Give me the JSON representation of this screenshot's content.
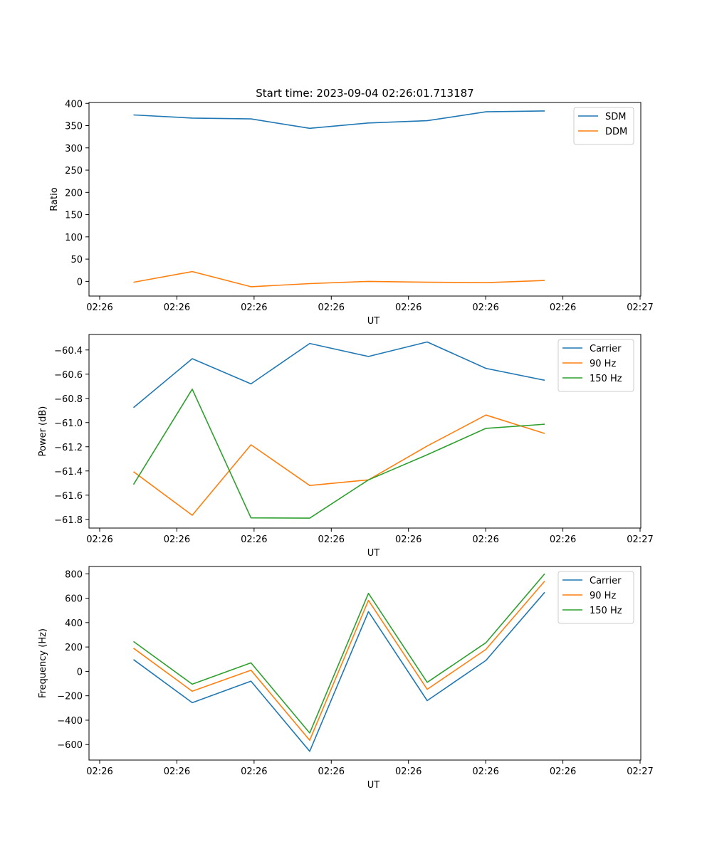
{
  "chart_data": [
    {
      "type": "line",
      "title": "Start time: 2023-09-04 02:26:01.713187",
      "xlabel": "UT",
      "ylabel": "Ratio",
      "xticks": [
        "02:26",
        "02:26",
        "02:26",
        "02:26",
        "02:26",
        "02:26",
        "02:26",
        "02:27"
      ],
      "xlim": [
        0,
        6.2
      ],
      "x": [
        0.5,
        1.16,
        1.82,
        2.48,
        3.14,
        3.8,
        4.46,
        5.12
      ],
      "ylim": [
        -33,
        402
      ],
      "yticks": [
        0,
        50,
        100,
        150,
        200,
        250,
        300,
        350,
        400
      ],
      "legend": "top-right",
      "series": [
        {
          "name": "SDM",
          "color": "#1f77b4",
          "values": [
            374,
            367,
            365,
            344,
            356,
            361,
            381,
            383
          ]
        },
        {
          "name": "DDM",
          "color": "#ff7f0e",
          "values": [
            -2,
            22,
            -12,
            -5,
            0,
            -2,
            -3,
            2
          ]
        }
      ]
    },
    {
      "type": "line",
      "title": "",
      "xlabel": "UT",
      "ylabel": "Power (dB)",
      "xticks": [
        "02:26",
        "02:26",
        "02:26",
        "02:26",
        "02:26",
        "02:26",
        "02:26",
        "02:27"
      ],
      "xlim": [
        0,
        6.2
      ],
      "x": [
        0.5,
        1.16,
        1.82,
        2.48,
        3.14,
        3.8,
        4.46,
        5.12
      ],
      "ylim": [
        -61.872,
        -60.272
      ],
      "yticks": [
        -61.8,
        -61.6,
        -61.4,
        -61.2,
        -61.0,
        -60.8,
        -60.6,
        -60.4
      ],
      "ytick_labels": [
        "−61.8",
        "−61.6",
        "−61.4",
        "−61.2",
        "−61.0",
        "−60.8",
        "−60.6",
        "−60.4"
      ],
      "legend": "top-right",
      "series": [
        {
          "name": "Carrier",
          "color": "#1f77b4",
          "values": [
            -60.876,
            -60.472,
            -60.68,
            -60.346,
            -60.454,
            -60.334,
            -60.552,
            -60.65
          ]
        },
        {
          "name": "90 Hz",
          "color": "#ff7f0e",
          "values": [
            -61.406,
            -61.766,
            -61.184,
            -61.52,
            -61.474,
            -61.194,
            -60.938,
            -61.09
          ]
        },
        {
          "name": "150 Hz",
          "color": "#2ca02c",
          "values": [
            -61.512,
            -60.724,
            -61.788,
            -61.79,
            -61.474,
            -61.266,
            -61.048,
            -61.014
          ]
        }
      ]
    },
    {
      "type": "line",
      "title": "",
      "xlabel": "UT",
      "ylabel": "Frequency (Hz)",
      "xticks": [
        "02:26",
        "02:26",
        "02:26",
        "02:26",
        "02:26",
        "02:26",
        "02:26",
        "02:27"
      ],
      "xlim": [
        0,
        6.2
      ],
      "x": [
        0.5,
        1.16,
        1.82,
        2.48,
        3.14,
        3.8,
        4.46,
        5.12
      ],
      "ylim": [
        -727,
        860
      ],
      "yticks": [
        -600,
        -400,
        -200,
        0,
        200,
        400,
        600,
        800
      ],
      "ytick_labels": [
        "−600",
        "−400",
        "−200",
        "0",
        "200",
        "400",
        "600",
        "800"
      ],
      "legend": "top-right",
      "series": [
        {
          "name": "Carrier",
          "color": "#1f77b4",
          "values": [
            97,
            -257,
            -80,
            -655,
            490,
            -240,
            90,
            648
          ]
        },
        {
          "name": "90 Hz",
          "color": "#ff7f0e",
          "values": [
            190,
            -163,
            10,
            -565,
            582,
            -147,
            180,
            740
          ]
        },
        {
          "name": "150 Hz",
          "color": "#2ca02c",
          "values": [
            245,
            -105,
            70,
            -505,
            640,
            -90,
            235,
            800
          ]
        }
      ]
    }
  ]
}
